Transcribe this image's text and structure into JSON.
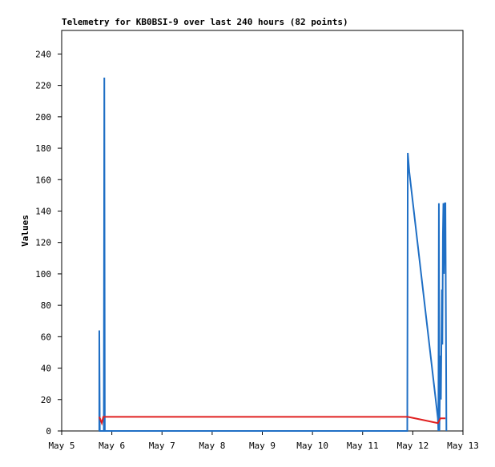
{
  "chart_data": {
    "type": "line",
    "title": "Telemetry for KB0BSI-9 over last 240 hours (82 points)",
    "y_label": "Values",
    "xlim": [
      5,
      13
    ],
    "xticks": [
      {
        "value": 5,
        "label": "May 5"
      },
      {
        "value": 6,
        "label": "May 6"
      },
      {
        "value": 7,
        "label": "May 7"
      },
      {
        "value": 8,
        "label": "May 8"
      },
      {
        "value": 9,
        "label": "May 9"
      },
      {
        "value": 10,
        "label": "May 10"
      },
      {
        "value": 11,
        "label": "May 11"
      },
      {
        "value": 12,
        "label": "May 12"
      },
      {
        "value": 13,
        "label": "May 13"
      }
    ],
    "ylim": [
      0,
      255
    ],
    "yticks": [
      0,
      20,
      40,
      60,
      80,
      100,
      120,
      140,
      160,
      180,
      200,
      220,
      240
    ],
    "series": [
      {
        "color": "#1f6fc5",
        "x": [
          5.75,
          5.75,
          5.76,
          5.84,
          5.85,
          5.86,
          11.89,
          11.9,
          11.93,
          12.5,
          12.51,
          12.52,
          12.53,
          12.55,
          12.56,
          12.58,
          12.59,
          12.6,
          12.61,
          12.62,
          12.64,
          12.65,
          12.66,
          12.67
        ],
        "values": [
          0,
          64,
          0,
          0,
          225,
          0,
          0,
          177,
          165,
          8,
          0,
          145,
          0,
          48,
          20,
          90,
          55,
          125,
          145,
          100,
          145,
          145,
          72,
          0
        ]
      },
      {
        "color": "#e02020",
        "x": [
          5.75,
          5.8,
          5.83,
          11.9,
          12.2,
          12.5,
          12.55,
          12.65
        ],
        "values": [
          9,
          5,
          9,
          9,
          7,
          5,
          8,
          8
        ]
      }
    ]
  }
}
